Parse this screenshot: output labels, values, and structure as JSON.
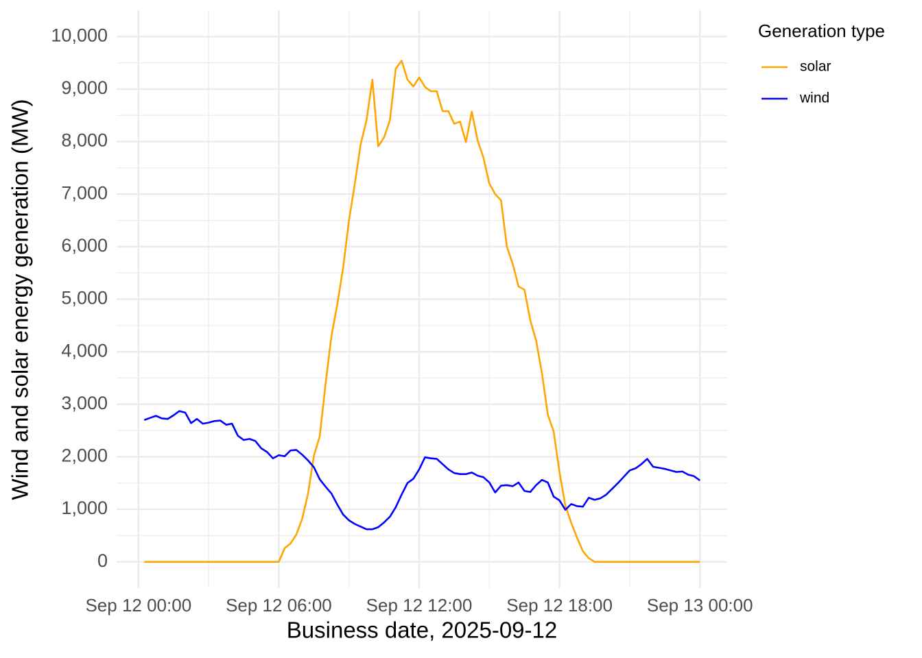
{
  "chart_data": {
    "type": "line",
    "x_label": "Business date, 2025-09-12",
    "y_label": "Wind and solar energy generation (MW)",
    "legend_title": "Generation type",
    "legend": "right",
    "grid": true,
    "x": [
      "2025-09-12T00:15",
      "2025-09-12T00:30",
      "2025-09-12T00:45",
      "2025-09-12T01:00",
      "2025-09-12T01:15",
      "2025-09-12T01:30",
      "2025-09-12T01:45",
      "2025-09-12T02:00",
      "2025-09-12T02:15",
      "2025-09-12T02:30",
      "2025-09-12T02:45",
      "2025-09-12T03:00",
      "2025-09-12T03:15",
      "2025-09-12T03:30",
      "2025-09-12T03:45",
      "2025-09-12T04:00",
      "2025-09-12T04:15",
      "2025-09-12T04:30",
      "2025-09-12T04:45",
      "2025-09-12T05:00",
      "2025-09-12T05:15",
      "2025-09-12T05:30",
      "2025-09-12T05:45",
      "2025-09-12T06:00",
      "2025-09-12T06:15",
      "2025-09-12T06:30",
      "2025-09-12T06:45",
      "2025-09-12T07:00",
      "2025-09-12T07:15",
      "2025-09-12T07:30",
      "2025-09-12T07:45",
      "2025-09-12T08:00",
      "2025-09-12T08:15",
      "2025-09-12T08:30",
      "2025-09-12T08:45",
      "2025-09-12T09:00",
      "2025-09-12T09:15",
      "2025-09-12T09:30",
      "2025-09-12T09:45",
      "2025-09-12T10:00",
      "2025-09-12T10:15",
      "2025-09-12T10:30",
      "2025-09-12T10:45",
      "2025-09-12T11:00",
      "2025-09-12T11:15",
      "2025-09-12T11:30",
      "2025-09-12T11:45",
      "2025-09-12T12:00",
      "2025-09-12T12:15",
      "2025-09-12T12:30",
      "2025-09-12T12:45",
      "2025-09-12T13:00",
      "2025-09-12T13:15",
      "2025-09-12T13:30",
      "2025-09-12T13:45",
      "2025-09-12T14:00",
      "2025-09-12T14:15",
      "2025-09-12T14:30",
      "2025-09-12T14:45",
      "2025-09-12T15:00",
      "2025-09-12T15:15",
      "2025-09-12T15:30",
      "2025-09-12T15:45",
      "2025-09-12T16:00",
      "2025-09-12T16:15",
      "2025-09-12T16:30",
      "2025-09-12T16:45",
      "2025-09-12T17:00",
      "2025-09-12T17:15",
      "2025-09-12T17:30",
      "2025-09-12T17:45",
      "2025-09-12T18:00",
      "2025-09-12T18:15",
      "2025-09-12T18:30",
      "2025-09-12T18:45",
      "2025-09-12T19:00",
      "2025-09-12T19:15",
      "2025-09-12T19:30",
      "2025-09-12T19:45",
      "2025-09-12T20:00",
      "2025-09-12T20:15",
      "2025-09-12T20:30",
      "2025-09-12T20:45",
      "2025-09-12T21:00",
      "2025-09-12T21:15",
      "2025-09-12T21:30",
      "2025-09-12T21:45",
      "2025-09-12T22:00",
      "2025-09-12T22:15",
      "2025-09-12T22:30",
      "2025-09-12T22:45",
      "2025-09-12T23:00",
      "2025-09-12T23:15",
      "2025-09-12T23:30",
      "2025-09-12T23:45",
      "2025-09-13T00:00"
    ],
    "xlim": [
      "2025-09-11T23:04",
      "2025-09-13T01:10"
    ],
    "xticks": [
      {
        "value": "2025-09-12T00:00",
        "label": "Sep 12 00:00"
      },
      {
        "value": "2025-09-12T06:00",
        "label": "Sep 12 06:00"
      },
      {
        "value": "2025-09-12T12:00",
        "label": "Sep 12 12:00"
      },
      {
        "value": "2025-09-12T18:00",
        "label": "Sep 12 18:00"
      },
      {
        "value": "2025-09-13T00:00",
        "label": "Sep 13 00:00"
      }
    ],
    "x_minor_ticks": [
      "2025-09-12T03:00",
      "2025-09-12T09:00",
      "2025-09-12T15:00",
      "2025-09-12T21:00"
    ],
    "ylim": [
      -500,
      10500
    ],
    "yticks": [
      0,
      {
        "value": 1000,
        "label": "1,000"
      },
      {
        "value": 2000,
        "label": "2,000"
      },
      {
        "value": 3000,
        "label": "3,000"
      },
      {
        "value": 4000,
        "label": "4,000"
      },
      {
        "value": 5000,
        "label": "5,000"
      },
      {
        "value": 6000,
        "label": "6,000"
      },
      {
        "value": 7000,
        "label": "7,000"
      },
      {
        "value": 8000,
        "label": "8,000"
      },
      {
        "value": 9000,
        "label": "9,000"
      },
      {
        "value": 10000,
        "label": "10,000"
      }
    ],
    "y_minor_ticks": [
      500,
      1500,
      2500,
      3500,
      4500,
      5500,
      6500,
      7500,
      8500,
      9500
    ],
    "series": [
      {
        "name": "solar",
        "color": "#ffa500",
        "values": [
          0,
          0,
          0,
          0,
          0,
          0,
          0,
          0,
          0,
          0,
          0,
          0,
          0,
          0,
          0,
          0,
          0,
          0,
          0,
          0,
          0,
          0,
          0,
          0,
          260,
          350,
          520,
          820,
          1300,
          2020,
          2390,
          3390,
          4300,
          4900,
          5600,
          6500,
          7200,
          7950,
          8410,
          9180,
          7910,
          8080,
          8410,
          9390,
          9540,
          9180,
          9050,
          9220,
          9040,
          8960,
          8960,
          8580,
          8580,
          8340,
          8380,
          7990,
          8570,
          8020,
          7690,
          7200,
          7000,
          6880,
          6000,
          5670,
          5240,
          5180,
          4600,
          4210,
          3590,
          2800,
          2480,
          1700,
          1070,
          740,
          460,
          200,
          70,
          0,
          0,
          0,
          0,
          0,
          0,
          0,
          0,
          0,
          0,
          0,
          0,
          0,
          0,
          0,
          0,
          0,
          0,
          0
        ]
      },
      {
        "name": "wind",
        "color": "#0000ff",
        "values": [
          2700,
          2740,
          2780,
          2730,
          2720,
          2790,
          2870,
          2840,
          2640,
          2720,
          2630,
          2650,
          2680,
          2690,
          2610,
          2630,
          2400,
          2320,
          2340,
          2300,
          2160,
          2090,
          1970,
          2030,
          2010,
          2120,
          2130,
          2040,
          1930,
          1800,
          1570,
          1430,
          1300,
          1090,
          900,
          790,
          720,
          670,
          620,
          620,
          660,
          750,
          860,
          1040,
          1280,
          1500,
          1580,
          1760,
          1990,
          1970,
          1960,
          1860,
          1760,
          1690,
          1670,
          1670,
          1700,
          1640,
          1610,
          1510,
          1320,
          1450,
          1460,
          1440,
          1510,
          1350,
          1330,
          1460,
          1560,
          1510,
          1240,
          1170,
          990,
          1100,
          1060,
          1050,
          1220,
          1180,
          1210,
          1280,
          1390,
          1500,
          1620,
          1740,
          1780,
          1860,
          1960,
          1810,
          1790,
          1770,
          1740,
          1710,
          1720,
          1660,
          1630,
          1550
        ]
      }
    ]
  }
}
